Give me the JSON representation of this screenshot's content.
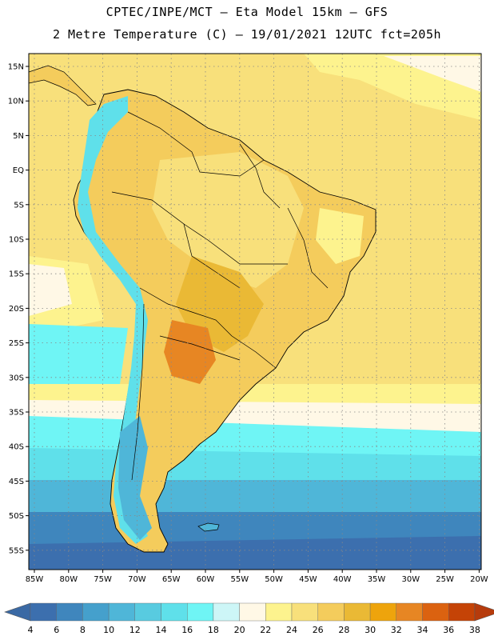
{
  "header": {
    "line1": "CPTEC/INPE/MCT –  Eta Model 15km – GFS",
    "line2": "2 Metre Temperature (C) – 19/01/2021 12UTC fct=205h"
  },
  "map": {
    "lat_labels": [
      "15N",
      "10N",
      "5N",
      "EQ",
      "5S",
      "10S",
      "15S",
      "20S",
      "25S",
      "30S",
      "35S",
      "40S",
      "45S",
      "50S",
      "55S"
    ],
    "lon_labels": [
      "85W",
      "80W",
      "75W",
      "70W",
      "65W",
      "60W",
      "55W",
      "50W",
      "45W",
      "40W",
      "35W",
      "30W",
      "25W",
      "20W"
    ],
    "grid": true,
    "grid_style": "dotted"
  },
  "colorbar": {
    "ticks": [
      "4",
      "6",
      "8",
      "10",
      "12",
      "14",
      "16",
      "18",
      "20",
      "22",
      "24",
      "26",
      "28",
      "30",
      "32",
      "34",
      "36",
      "38"
    ],
    "colors": [
      "#3c6fae",
      "#3f86bd",
      "#45a0cc",
      "#4fb6d8",
      "#58cbe0",
      "#5fe0ea",
      "#6ff5f5",
      "#cdf6f7",
      "#fff8e6",
      "#fdf38e",
      "#f8e07b",
      "#f4cc5c",
      "#eab935",
      "#eea40c",
      "#e78623",
      "#db6210",
      "#c54306"
    ],
    "low_color": "#3a69a4",
    "high_color": "#b63b0c"
  }
}
